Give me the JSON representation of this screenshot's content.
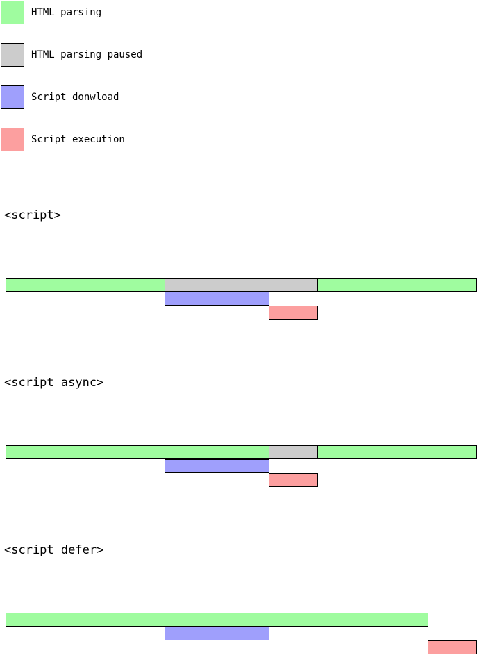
{
  "colors": {
    "parsing": "#9ffc9f",
    "paused": "#cccccc",
    "download": "#9f9ffc",
    "execution": "#fc9f9f"
  },
  "legend": [
    {
      "key": "parsing",
      "label": "HTML parsing"
    },
    {
      "key": "paused",
      "label": "HTML parsing paused"
    },
    {
      "key": "download",
      "label": "Script donwload"
    },
    {
      "key": "execution",
      "label": "Script execution"
    }
  ],
  "sections": [
    {
      "title": "<script>",
      "rows": [
        [
          {
            "key": "parsing",
            "start": 0,
            "end": 229
          },
          {
            "key": "paused",
            "start": 229,
            "end": 449
          },
          {
            "key": "parsing",
            "start": 449,
            "end": 678
          }
        ],
        [
          {
            "key": "download",
            "start": 229,
            "end": 379
          }
        ],
        [
          {
            "key": "execution",
            "start": 379,
            "end": 449
          }
        ]
      ]
    },
    {
      "title": "<script async>",
      "rows": [
        [
          {
            "key": "parsing",
            "start": 0,
            "end": 379
          },
          {
            "key": "paused",
            "start": 379,
            "end": 449
          },
          {
            "key": "parsing",
            "start": 449,
            "end": 678
          }
        ],
        [
          {
            "key": "download",
            "start": 229,
            "end": 379
          }
        ],
        [
          {
            "key": "execution",
            "start": 379,
            "end": 449
          }
        ]
      ]
    },
    {
      "title": "<script defer>",
      "rows": [
        [
          {
            "key": "parsing",
            "start": 0,
            "end": 608
          }
        ],
        [
          {
            "key": "download",
            "start": 229,
            "end": 379
          }
        ],
        [
          {
            "key": "execution",
            "start": 608,
            "end": 678
          }
        ]
      ]
    }
  ]
}
